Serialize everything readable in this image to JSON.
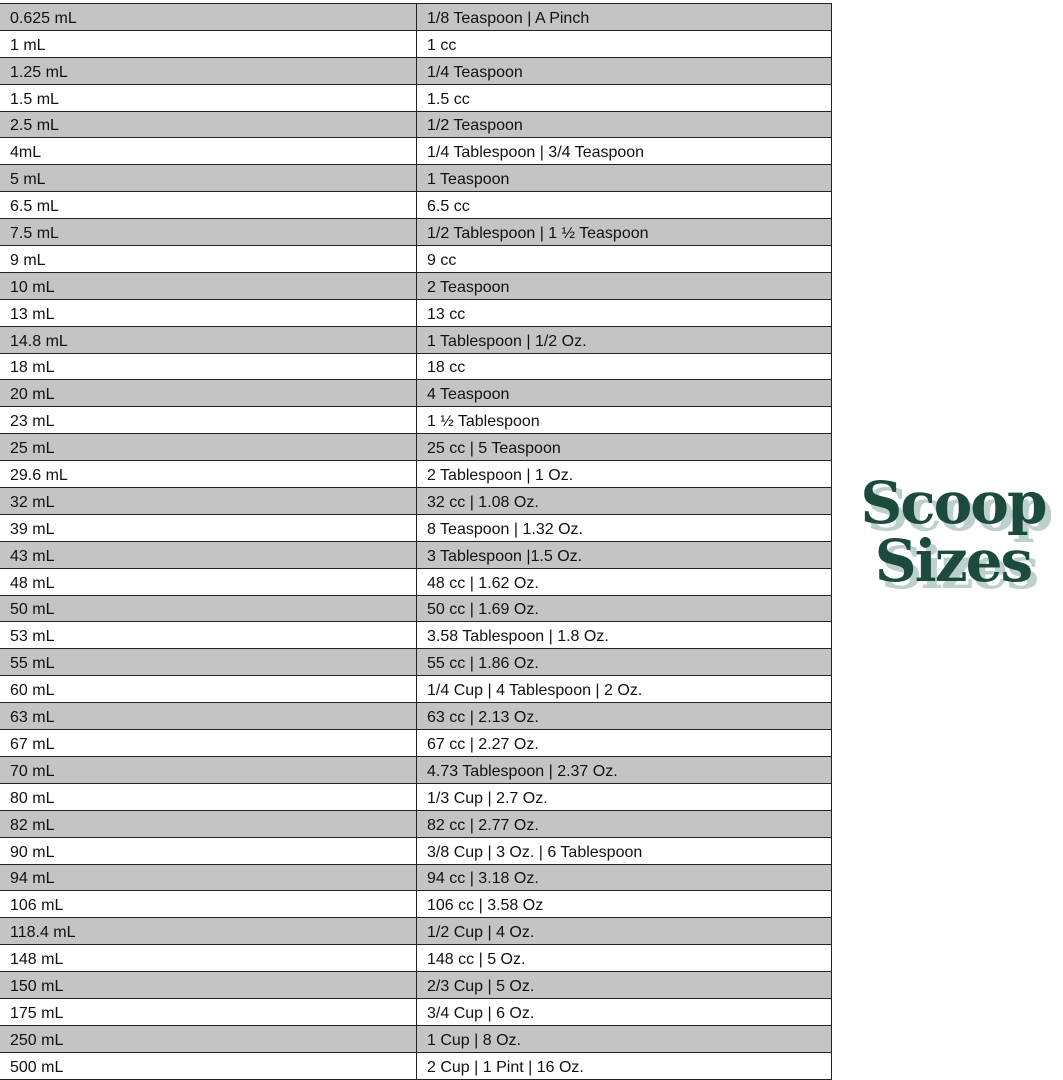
{
  "title": {
    "line1": "Scoop",
    "line2": "Sizes",
    "color": "#1d4a3e",
    "shadow_color": "#bcd0cc"
  },
  "table": {
    "stripe_color": "#c4c4c4",
    "rows": [
      [
        "0.625 mL",
        "1/8 Teaspoon | A Pinch"
      ],
      [
        "1 mL",
        "1 cc"
      ],
      [
        "1.25 mL",
        "1/4 Teaspoon"
      ],
      [
        "1.5 mL",
        "1.5 cc"
      ],
      [
        "2.5 mL",
        "1/2 Teaspoon"
      ],
      [
        "4mL",
        "1/4 Tablespoon | 3/4 Teaspoon"
      ],
      [
        "5 mL",
        "1 Teaspoon"
      ],
      [
        "6.5 mL",
        "6.5 cc"
      ],
      [
        "7.5 mL",
        "1/2 Tablespoon | 1 ½ Teaspoon"
      ],
      [
        "9 mL",
        "9 cc"
      ],
      [
        "10 mL",
        "2 Teaspoon"
      ],
      [
        "13 mL",
        "13 cc"
      ],
      [
        "14.8 mL",
        "1 Tablespoon | 1/2 Oz."
      ],
      [
        "18 mL",
        "18 cc"
      ],
      [
        "20 mL",
        "4 Teaspoon"
      ],
      [
        "23 mL",
        "1 ½ Tablespoon"
      ],
      [
        "25 mL",
        "25 cc | 5 Teaspoon"
      ],
      [
        "29.6 mL",
        "2 Tablespoon | 1 Oz."
      ],
      [
        "32 mL",
        "32 cc | 1.08 Oz."
      ],
      [
        "39 mL",
        "8 Teaspoon | 1.32 Oz."
      ],
      [
        "43 mL",
        "3 Tablespoon |1.5 Oz."
      ],
      [
        "48 mL",
        "48 cc | 1.62 Oz."
      ],
      [
        "50 mL",
        "50 cc | 1.69 Oz."
      ],
      [
        "53 mL",
        "3.58 Tablespoon | 1.8 Oz."
      ],
      [
        "55 mL",
        "55 cc | 1.86 Oz."
      ],
      [
        "60 mL",
        "1/4 Cup | 4 Tablespoon | 2 Oz."
      ],
      [
        "63 mL",
        "63 cc | 2.13 Oz."
      ],
      [
        "67 mL",
        "67 cc | 2.27 Oz."
      ],
      [
        "70 mL",
        "4.73 Tablespoon | 2.37 Oz."
      ],
      [
        "80 mL",
        "1/3 Cup | 2.7 Oz."
      ],
      [
        "82 mL",
        "82 cc | 2.77 Oz."
      ],
      [
        "90 mL",
        "3/8 Cup | 3 Oz. | 6 Tablespoon"
      ],
      [
        "94 mL",
        "94 cc | 3.18 Oz."
      ],
      [
        "106 mL",
        "106 cc | 3.58 Oz"
      ],
      [
        "118.4 mL",
        "1/2 Cup | 4 Oz."
      ],
      [
        "148 mL",
        "148 cc | 5 Oz."
      ],
      [
        "150 mL",
        "2/3 Cup | 5 Oz."
      ],
      [
        "175 mL",
        "3/4 Cup | 6 Oz."
      ],
      [
        "250 mL",
        "1 Cup | 8 Oz."
      ],
      [
        "500 mL",
        "2 Cup | 1 Pint | 16 Oz."
      ]
    ]
  }
}
